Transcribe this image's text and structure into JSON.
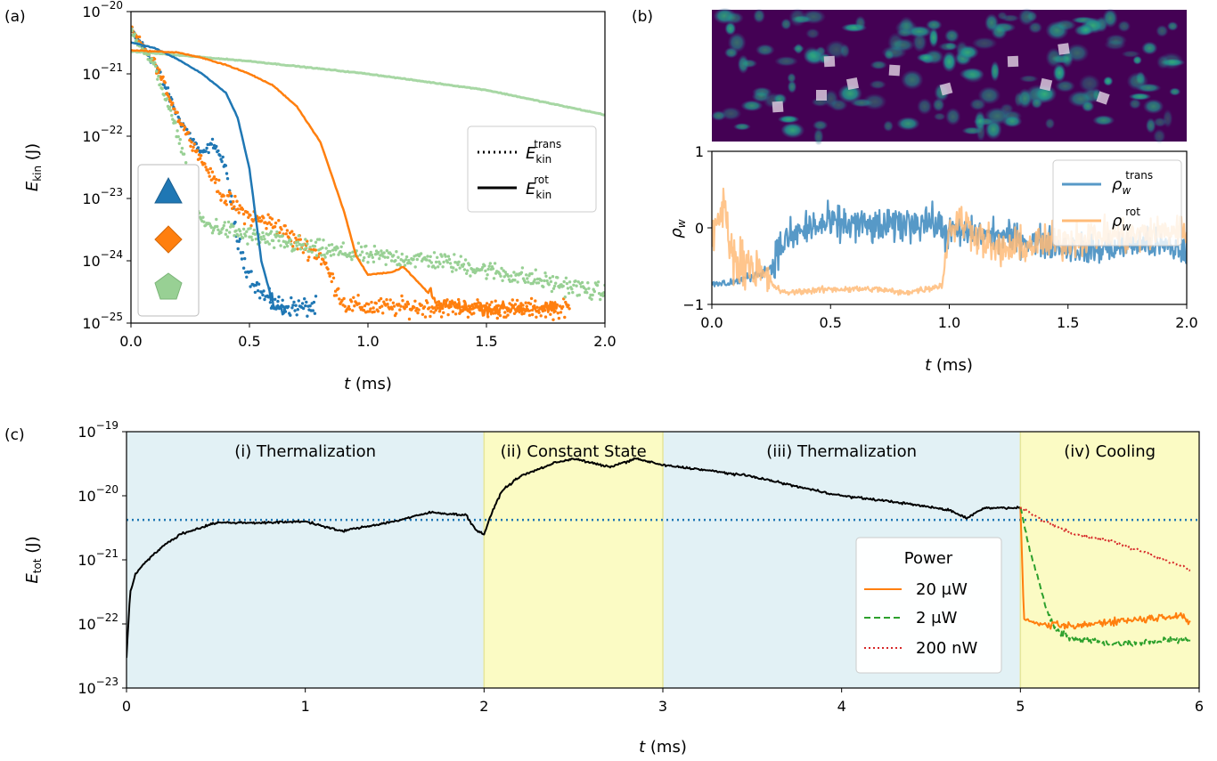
{
  "panels": {
    "a": {
      "letter": "(a)",
      "ylabel_main": "E",
      "ylabel_sub": "kin",
      "ylabel_unit": "(J)",
      "xlabel_main": "t",
      "xlabel_unit": "(ms)",
      "xticks": [
        "0.0",
        "0.5",
        "1.0",
        "1.5",
        "2.0"
      ],
      "yticks": [
        {
          "base": "10",
          "exp": "−20"
        },
        {
          "base": "10",
          "exp": "−21"
        },
        {
          "base": "10",
          "exp": "−22"
        },
        {
          "base": "10",
          "exp": "−23"
        },
        {
          "base": "10",
          "exp": "−24"
        },
        {
          "base": "10",
          "exp": "−25"
        }
      ],
      "legend": {
        "trans": {
          "main": "E",
          "sub": "kin",
          "sup": "trans"
        },
        "rot": {
          "main": "E",
          "sub": "kin",
          "sup": "rot"
        }
      },
      "markers": [
        {
          "shape": "triangle",
          "color": "#1f77b4"
        },
        {
          "shape": "diamond",
          "color": "#ff7f0e"
        },
        {
          "shape": "pentagon",
          "color": "#98d094"
        }
      ]
    },
    "b": {
      "letter": "(b)",
      "ylabel_main": "ρ",
      "ylabel_sub": "w",
      "xlabel_main": "t",
      "xlabel_unit": "(ms)",
      "xticks": [
        "0.0",
        "0.5",
        "1.0",
        "1.5",
        "2.0"
      ],
      "yticks": [
        "1",
        "0",
        "−1"
      ],
      "legend": {
        "trans": {
          "main": "ρ",
          "sub": "w",
          "sup": "trans"
        },
        "rot": {
          "main": "ρ",
          "sub": "w",
          "sup": "rot"
        }
      }
    },
    "c": {
      "letter": "(c)",
      "ylabel_main": "E",
      "ylabel_sub": "tot",
      "ylabel_unit": "(J)",
      "xlabel_main": "t",
      "xlabel_unit": "(ms)",
      "xticks": [
        "0",
        "1",
        "2",
        "3",
        "4",
        "5",
        "6"
      ],
      "yticks": [
        {
          "base": "10",
          "exp": "−19"
        },
        {
          "base": "10",
          "exp": "−20"
        },
        {
          "base": "10",
          "exp": "−21"
        },
        {
          "base": "10",
          "exp": "−22"
        },
        {
          "base": "10",
          "exp": "−23"
        }
      ],
      "regions": [
        "(i) Thermalization",
        "(ii) Constant State",
        "(iii) Thermalization",
        "(iv) Cooling"
      ],
      "legend": {
        "title": "Power",
        "items": [
          "20 μW",
          "2 μW",
          "200 nW"
        ]
      }
    }
  },
  "colors": {
    "blue": "#1f77b4",
    "orange": "#ff7f0e",
    "lightgreen": "#98d094",
    "green": "#2ca02c",
    "red": "#d62728",
    "blue_region": "#e2f1f5",
    "yellow_region": "#fbfbc4",
    "heatmap_bg": "#440154"
  },
  "chart_data": [
    {
      "type": "line",
      "panel": "a",
      "xlabel": "t (ms)",
      "ylabel": "E_kin (J)",
      "xlim": [
        0,
        2.0
      ],
      "ylim": [
        1e-25,
        1e-20
      ],
      "yscale": "log",
      "series": [
        {
          "name": "E_kin^rot",
          "marker": "triangle",
          "color": "#1f77b4",
          "style": "solid",
          "x": [
            0,
            0.1,
            0.2,
            0.3,
            0.4,
            0.45,
            0.5,
            0.55,
            0.6,
            0.65
          ],
          "y": [
            3.2e-21,
            2.6e-21,
            1.7e-21,
            1e-21,
            5e-22,
            2e-22,
            3e-23,
            1e-24,
            2e-25,
            1.5e-25
          ]
        },
        {
          "name": "E_kin^rot",
          "marker": "diamond",
          "color": "#ff7f0e",
          "style": "solid",
          "x": [
            0,
            0.2,
            0.3,
            0.4,
            0.5,
            0.6,
            0.7,
            0.8,
            0.9,
            0.95,
            1.0,
            1.1,
            1.15,
            1.3,
            1.5,
            1.8
          ],
          "y": [
            2.4e-21,
            2.2e-21,
            1.8e-21,
            1.4e-21,
            1e-21,
            6.5e-22,
            3e-22,
            8e-23,
            6e-24,
            1.2e-24,
            6e-25,
            6.5e-25,
            8e-25,
            2e-25,
            1.7e-25,
            1.7e-25
          ]
        },
        {
          "name": "E_kin^rot",
          "marker": "pentagon",
          "color": "#98d094",
          "style": "solid",
          "x": [
            0,
            0.5,
            1.0,
            1.5,
            2.0
          ],
          "y": [
            2.3e-21,
            1.6e-21,
            1e-21,
            5.5e-22,
            2.2e-22
          ]
        },
        {
          "name": "E_kin^trans",
          "marker": "triangle",
          "color": "#1f77b4",
          "style": "dotted",
          "x": [
            0,
            0.1,
            0.2,
            0.3,
            0.35,
            0.4,
            0.45,
            0.5,
            0.55,
            0.6,
            0.7,
            0.78
          ],
          "y": [
            5e-21,
            1.5e-21,
            2e-22,
            5e-23,
            8e-23,
            3e-23,
            2e-24,
            6e-25,
            3e-25,
            2e-25,
            1.8e-25,
            1.8e-25
          ]
        },
        {
          "name": "E_kin^trans",
          "marker": "diamond",
          "color": "#ff7f0e",
          "style": "dotted",
          "x": [
            0,
            0.1,
            0.2,
            0.3,
            0.4,
            0.5,
            0.6,
            0.7,
            0.8,
            0.9,
            1.0,
            1.3,
            1.6,
            1.85
          ],
          "y": [
            5e-21,
            1.5e-21,
            2e-22,
            4e-23,
            1e-23,
            5e-24,
            4e-24,
            2e-24,
            1.2e-24,
            2e-25,
            1.8e-25,
            1.8e-25,
            1.7e-25,
            1.7e-25
          ]
        },
        {
          "name": "E_kin^trans",
          "marker": "pentagon",
          "color": "#98d094",
          "style": "dotted",
          "x": [
            0,
            0.1,
            0.2,
            0.3,
            0.5,
            0.8,
            1.0,
            1.3,
            1.6,
            2.0
          ],
          "y": [
            5e-21,
            1.3e-21,
            1e-22,
            4e-24,
            2.5e-24,
            1.5e-24,
            1.2e-24,
            1e-24,
            6e-25,
            3e-25
          ]
        }
      ]
    },
    {
      "type": "line",
      "panel": "b",
      "xlabel": "t (ms)",
      "ylabel": "ρ_w",
      "xlim": [
        0,
        2.0
      ],
      "ylim": [
        -1,
        1
      ],
      "series": [
        {
          "name": "ρ_w^trans",
          "color": "#1f77b4",
          "x": [
            0,
            0.1,
            0.2,
            0.25,
            0.3,
            0.4,
            0.5,
            0.6,
            0.7,
            0.8,
            0.9,
            1.0,
            1.2,
            1.4,
            1.6,
            1.8,
            2.0
          ],
          "y": [
            -0.75,
            -0.7,
            -0.6,
            -0.5,
            -0.2,
            0.0,
            0.05,
            0.05,
            0.0,
            0.05,
            0.1,
            -0.05,
            -0.1,
            -0.2,
            -0.3,
            -0.2,
            -0.3
          ]
        },
        {
          "name": "ρ_w^rot",
          "color": "#ffbb78",
          "x": [
            0,
            0.05,
            0.1,
            0.15,
            0.2,
            0.3,
            0.5,
            0.7,
            0.8,
            0.9,
            0.97,
            1.0,
            1.05,
            1.2,
            1.4,
            1.6,
            1.8,
            2.0
          ],
          "y": [
            -0.2,
            0.3,
            -0.5,
            -0.4,
            -0.6,
            -0.85,
            -0.8,
            -0.8,
            -0.85,
            -0.8,
            -0.75,
            0.0,
            0.1,
            -0.3,
            -0.2,
            -0.1,
            -0.1,
            0.0
          ]
        }
      ]
    },
    {
      "type": "line",
      "panel": "c",
      "xlabel": "t (ms)",
      "ylabel": "E_tot (J)",
      "xlim": [
        0,
        6
      ],
      "ylim": [
        1e-23,
        1e-19
      ],
      "yscale": "log",
      "regions": [
        {
          "label": "(i) Thermalization",
          "x": [
            0,
            2
          ]
        },
        {
          "label": "(ii) Constant State",
          "x": [
            2,
            3
          ]
        },
        {
          "label": "(iii) Thermalization",
          "x": [
            3,
            5
          ]
        },
        {
          "label": "(iv) Cooling",
          "x": [
            5,
            6
          ]
        }
      ],
      "hline": {
        "y": 4.2e-21
      },
      "series": [
        {
          "color": "#000000",
          "x": [
            0,
            0.02,
            0.05,
            0.1,
            0.2,
            0.3,
            0.5,
            0.8,
            1.0,
            1.2,
            1.5,
            1.7,
            1.9,
            1.95,
            2.0,
            2.05,
            2.1,
            2.2,
            2.4,
            2.5,
            2.7,
            2.85,
            3.0,
            3.2,
            3.5,
            3.8,
            4.0,
            4.3,
            4.6,
            4.7,
            4.8,
            4.95,
            5.0
          ],
          "y": [
            3e-23,
            3e-22,
            6e-22,
            9e-22,
            1.6e-21,
            2.5e-21,
            3.8e-21,
            3.8e-21,
            4e-21,
            2.8e-21,
            4e-21,
            5.5e-21,
            5e-21,
            3e-21,
            2.5e-21,
            6e-21,
            1.2e-20,
            2e-20,
            3.3e-20,
            3.8e-20,
            2.8e-20,
            3.8e-20,
            3e-20,
            2.6e-20,
            2e-20,
            1.3e-20,
            1e-20,
            8e-21,
            6e-21,
            4.5e-21,
            6.5e-21,
            6.5e-21,
            6.5e-21
          ]
        },
        {
          "name": "20 μW",
          "color": "#ff7f0e",
          "style": "solid",
          "x": [
            5.0,
            5.02,
            5.1,
            5.3,
            5.5,
            5.7,
            5.9,
            5.95
          ],
          "y": [
            6.5e-21,
            1.2e-22,
            1e-22,
            9e-23,
            1.1e-22,
            1.2e-22,
            1.4e-22,
            1e-22
          ]
        },
        {
          "name": "2 μW",
          "color": "#2ca02c",
          "style": "dashed",
          "x": [
            5.0,
            5.05,
            5.1,
            5.15,
            5.2,
            5.3,
            5.5,
            5.7,
            5.9,
            5.95
          ],
          "y": [
            6.5e-21,
            1.5e-21,
            5e-22,
            1.5e-22,
            8e-23,
            6e-23,
            5e-23,
            5e-23,
            6e-23,
            5e-23
          ]
        },
        {
          "name": "200 nW",
          "color": "#d62728",
          "style": "dotted",
          "x": [
            5.0,
            5.1,
            5.3,
            5.5,
            5.7,
            5.9,
            5.95
          ],
          "y": [
            6.5e-21,
            4.5e-21,
            2.5e-21,
            2e-21,
            1.3e-21,
            8e-22,
            7e-22
          ]
        }
      ]
    }
  ]
}
